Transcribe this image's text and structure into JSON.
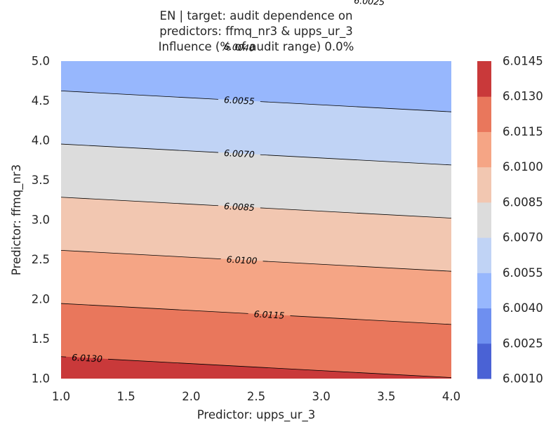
{
  "chart_data": {
    "type": "contour",
    "title_lines": [
      "EN | target: audit dependence on",
      "predictors: ffmq_nr3 & upps_ur_3",
      "Influence (% of audit range) 0.0%"
    ],
    "xlabel": "Predictor: upps_ur_3",
    "ylabel": "Predictor: ffmq_nr3",
    "xlim": [
      1.0,
      4.0
    ],
    "ylim": [
      1.0,
      5.0
    ],
    "x_ticks": [
      "1.0",
      "1.5",
      "2.0",
      "2.5",
      "3.0",
      "3.5",
      "4.0"
    ],
    "y_ticks": [
      "1.0",
      "1.5",
      "2.0",
      "2.5",
      "3.0",
      "3.5",
      "4.0",
      "4.5",
      "5.0"
    ],
    "surface": {
      "z_at_x1_y1": 6.01362,
      "dz_dx": -0.000197,
      "dz_dy": -0.00224
    },
    "levels": [
      6.001,
      6.0025,
      6.004,
      6.0055,
      6.007,
      6.0085,
      6.01,
      6.0115,
      6.013,
      6.0145
    ],
    "band_colors": [
      "#4a62d5",
      "#6e8ff0",
      "#97b7fd",
      "#c0d3f5",
      "#dcdcdc",
      "#f2c7b1",
      "#f5a585",
      "#e9775c",
      "#c9393a"
    ],
    "colorbar_ticks": [
      "6.0010",
      "6.0025",
      "6.0040",
      "6.0055",
      "6.0070",
      "6.0085",
      "6.0100",
      "6.0115",
      "6.0130",
      "6.0145"
    ],
    "contour_labels": [
      {
        "text": "6.0025",
        "x": 3.37
      },
      {
        "text": "6.0040",
        "x": 2.37
      },
      {
        "text": "6.0055",
        "x": 2.37
      },
      {
        "text": "6.0070",
        "x": 2.37
      },
      {
        "text": "6.0085",
        "x": 2.37
      },
      {
        "text": "6.0100",
        "x": 2.39
      },
      {
        "text": "6.0115",
        "x": 2.6
      },
      {
        "text": "6.0130",
        "x": 1.2
      }
    ]
  }
}
